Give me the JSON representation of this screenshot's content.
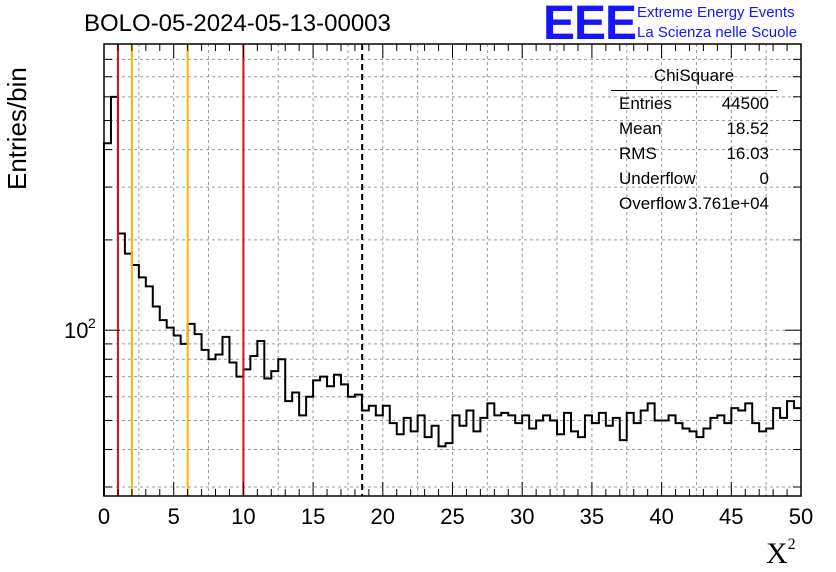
{
  "header": {
    "title": "BOLO-05-2024-05-13-00003",
    "logo_text": "EEE",
    "logo_line1": "Extreme Energy Events",
    "logo_line2": "La Scienza nelle Scuole"
  },
  "stats_box": {
    "title": "ChiSquare",
    "rows": [
      {
        "key": "Entries",
        "value": "44500"
      },
      {
        "key": "Mean",
        "value": "18.52"
      },
      {
        "key": "RMS",
        "value": "16.03"
      },
      {
        "key": "Underflow",
        "value": "0"
      },
      {
        "key": "Overflow",
        "value": "3.761e+04"
      }
    ]
  },
  "colors": {
    "red_line": "#dd1111",
    "yellow_line": "#f5b800",
    "histogram": "#000000",
    "logo": "#1515ff"
  },
  "chart_data": {
    "type": "histogram",
    "title": "BOLO-05-2024-05-13-00003",
    "xlabel": "X",
    "xlabel_sup": "2",
    "ylabel": "Entries/bin",
    "xlim": [
      0,
      50
    ],
    "ylim": [
      28,
      900
    ],
    "yscale": "log",
    "x_ticks": [
      "0",
      "5",
      "10",
      "15",
      "20",
      "25",
      "30",
      "35",
      "40",
      "45",
      "50"
    ],
    "y_tick_label": "10",
    "y_tick_sup": "2",
    "grid": true,
    "bin_width": 0.5,
    "values": [
      420,
      600,
      210,
      180,
      165,
      150,
      140,
      120,
      108,
      102,
      96,
      90,
      105,
      97,
      86,
      80,
      83,
      95,
      78,
      70,
      74,
      82,
      92,
      69,
      73,
      80,
      58,
      62,
      52,
      60,
      68,
      70,
      65,
      71,
      66,
      60,
      61,
      54,
      56,
      52,
      56,
      49,
      45,
      51,
      46,
      52,
      44,
      48,
      41,
      42,
      52,
      48,
      54,
      46,
      51,
      57,
      52,
      53,
      52,
      49,
      52,
      47,
      50,
      52,
      50,
      45,
      53,
      46,
      44,
      52,
      49,
      53,
      48,
      51,
      43,
      53,
      49,
      54,
      57,
      50,
      50,
      52,
      49,
      47,
      46,
      44,
      47,
      51,
      52,
      49,
      55,
      54,
      57,
      49,
      46,
      47,
      55,
      51,
      58,
      55
    ],
    "overflow_stepped": [
      420,
      600,
      210
    ],
    "markers": [
      {
        "x": 1.0,
        "color": "red"
      },
      {
        "x": 2.0,
        "color": "yellow"
      },
      {
        "x": 6.0,
        "color": "yellow"
      },
      {
        "x": 10.0,
        "color": "red"
      },
      {
        "x": 18.52,
        "color": "black",
        "style": "dashed"
      }
    ]
  }
}
